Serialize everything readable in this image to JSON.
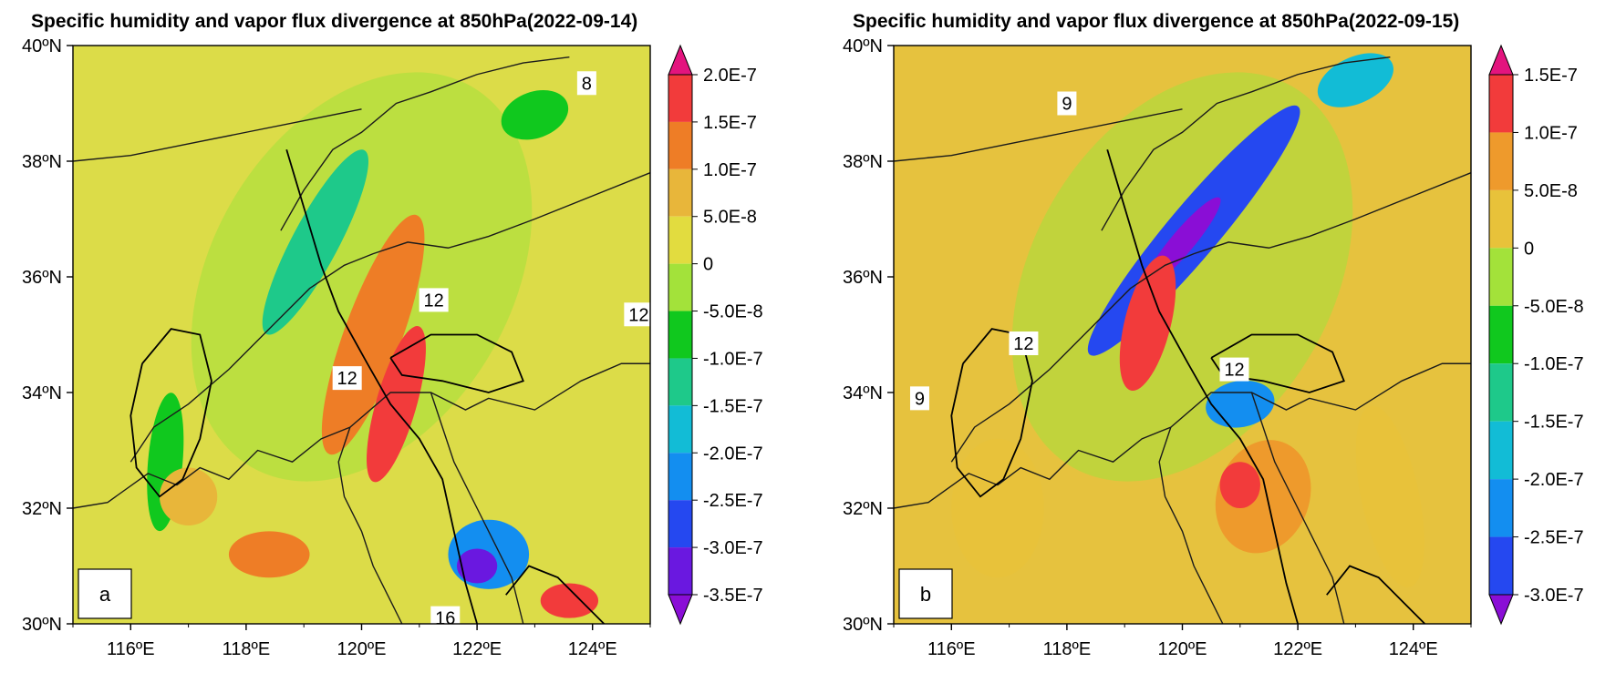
{
  "chart_data": [
    {
      "type": "contour",
      "panel_label": "a",
      "title": "Specific humidity and vapor flux divergence at 850hPa(2022-09-14)",
      "x_ticks": [
        "116ºE",
        "118ºE",
        "120ºE",
        "122ºE",
        "124ºE"
      ],
      "y_ticks": [
        "30ºN",
        "32ºN",
        "34ºN",
        "36ºN",
        "38ºN",
        "40ºN"
      ],
      "xlim": [
        115,
        125
      ],
      "ylim": [
        30,
        40
      ],
      "colorbar_levels": [
        "2.0E-7",
        "1.5E-7",
        "1.0E-7",
        "5.0E-8",
        "0",
        "-5.0E-8",
        "-1.0E-7",
        "-1.5E-7",
        "-2.0E-7",
        "-2.5E-7",
        "-3.0E-7",
        "-3.5E-7"
      ],
      "colorbar_colors": [
        "#e3147e",
        "#f23b3b",
        "#ee7d26",
        "#e8b63a",
        "#e2dc3f",
        "#a3e23a",
        "#10c81e",
        "#1ec98a",
        "#12bcd6",
        "#138ef0",
        "#2548f0",
        "#6a18e0",
        "#8a0ed6"
      ],
      "contour_labels": [
        {
          "text": "8",
          "lon": 123.9,
          "lat": 39.35
        },
        {
          "text": "12",
          "lon": 121.25,
          "lat": 35.6
        },
        {
          "text": "12",
          "lon": 124.8,
          "lat": 35.35
        },
        {
          "text": "12",
          "lon": 119.75,
          "lat": 34.25
        },
        {
          "text": "16",
          "lon": 121.45,
          "lat": 30.1
        }
      ]
    },
    {
      "type": "contour",
      "panel_label": "b",
      "title": "Specific humidity and vapor flux divergence at 850hPa(2022-09-15)",
      "x_ticks": [
        "116ºE",
        "118ºE",
        "120ºE",
        "122ºE",
        "124ºE"
      ],
      "y_ticks": [
        "30ºN",
        "32ºN",
        "34ºN",
        "36ºN",
        "38ºN",
        "40ºN"
      ],
      "xlim": [
        115,
        125
      ],
      "ylim": [
        30,
        40
      ],
      "colorbar_levels": [
        "1.5E-7",
        "1.0E-7",
        "5.0E-8",
        "0",
        "-5.0E-8",
        "-1.0E-7",
        "-1.5E-7",
        "-2.0E-7",
        "-2.5E-7",
        "-3.0E-7"
      ],
      "colorbar_colors": [
        "#e3147e",
        "#f23b3b",
        "#ee9a2c",
        "#e8c23a",
        "#a3e23a",
        "#10c81e",
        "#1ec98a",
        "#12bcd6",
        "#138ef0",
        "#2548f0",
        "#8a0ed6"
      ],
      "contour_labels": [
        {
          "text": "9",
          "lon": 118.0,
          "lat": 39.0
        },
        {
          "text": "12",
          "lon": 117.25,
          "lat": 34.85
        },
        {
          "text": "9",
          "lon": 115.45,
          "lat": 33.9
        },
        {
          "text": "12",
          "lon": 120.9,
          "lat": 34.4
        }
      ]
    }
  ]
}
